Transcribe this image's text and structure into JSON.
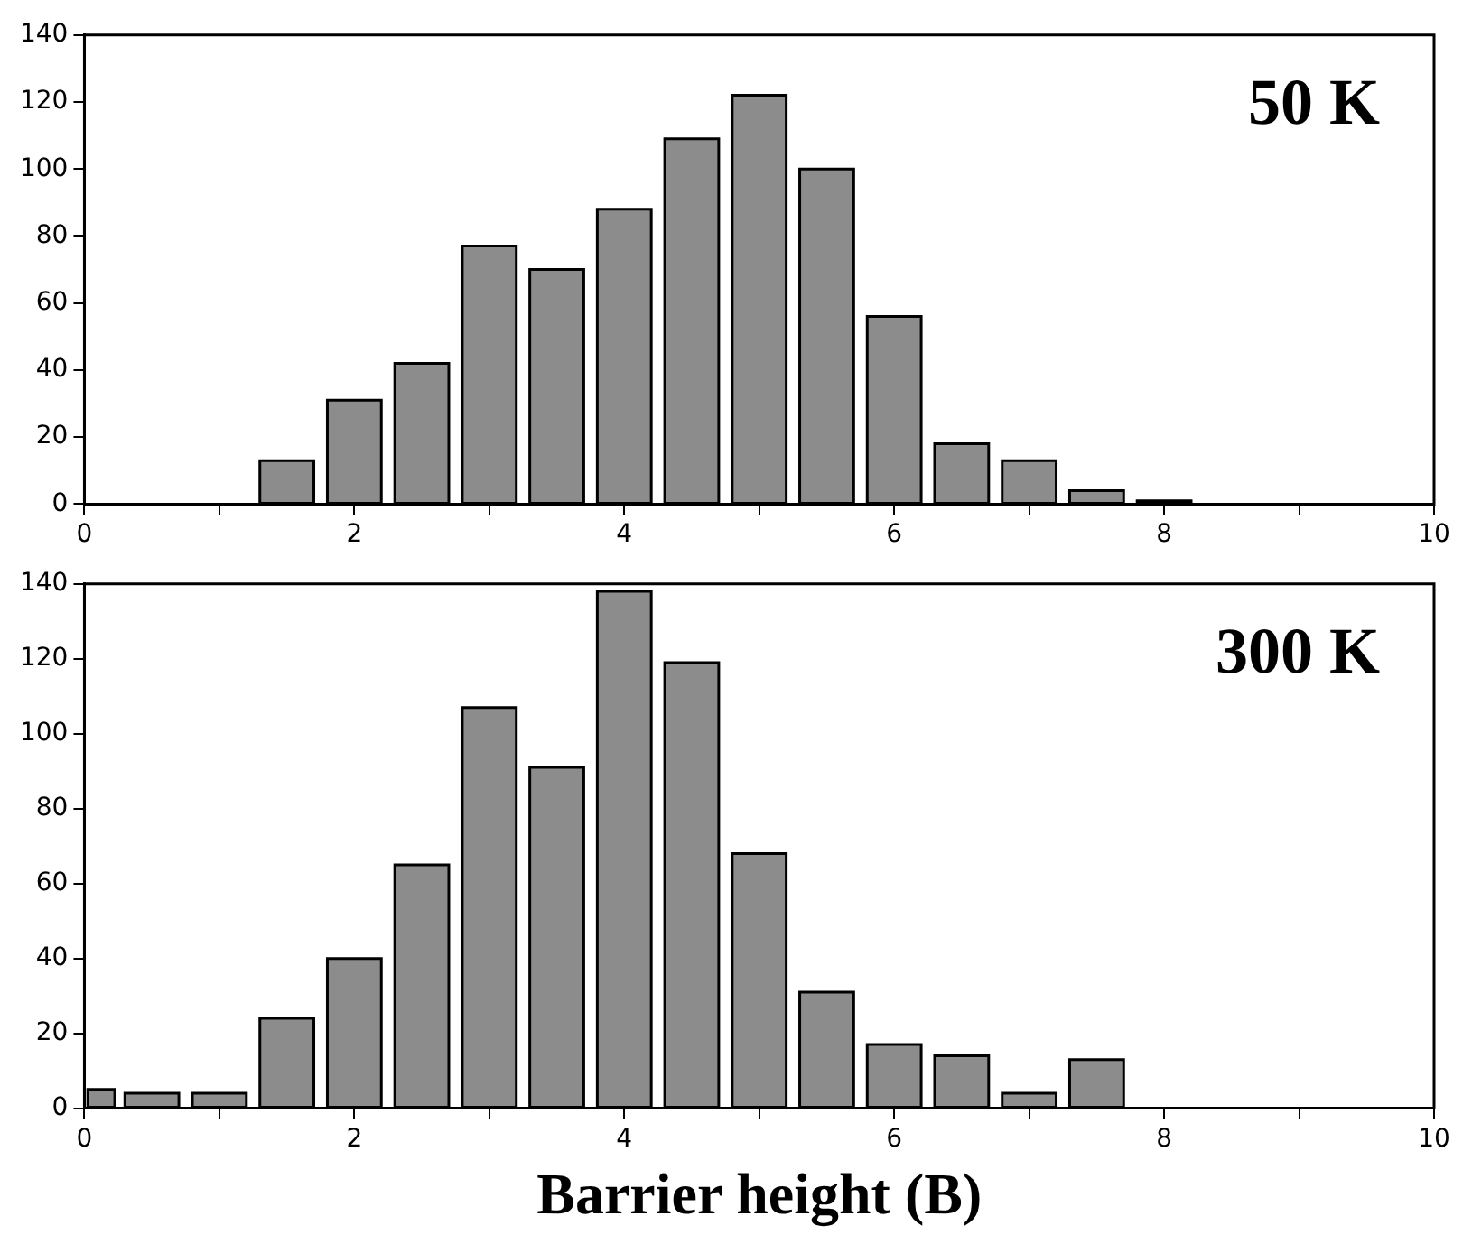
{
  "chart_data": [
    {
      "type": "histogram",
      "annotations": [
        "50 K"
      ],
      "bins": [
        1.25,
        1.75,
        2.25,
        2.75,
        3.25,
        3.75,
        4.25,
        4.75,
        5.25,
        5.75,
        6.25,
        6.75,
        7.25,
        7.75,
        8.25
      ],
      "values": [
        13,
        31,
        42,
        77,
        70,
        88,
        109,
        122,
        100,
        56,
        18,
        13,
        4,
        1
      ],
      "color": "#8c8c8c",
      "xlim": [
        0,
        10
      ],
      "xticks": [
        0,
        {
          "value": 1,
          "label": null
        },
        2,
        {
          "value": 3,
          "label": null
        },
        4,
        {
          "value": 5,
          "label": null
        },
        6,
        {
          "value": 7,
          "label": null
        },
        8,
        {
          "value": 9,
          "label": null
        },
        10
      ],
      "ylim": [
        0,
        140
      ],
      "yticks": [
        0,
        20,
        40,
        60,
        80,
        100,
        120,
        140
      ],
      "legend": false,
      "grid": false
    },
    {
      "type": "histogram",
      "annotations": [
        "300 K"
      ],
      "xlabel": "Barrier height (B)",
      "bins": [
        0,
        0.25,
        0.75,
        1.25,
        1.75,
        2.25,
        2.75,
        3.25,
        3.75,
        4.25,
        4.75,
        5.25,
        5.75,
        6.25,
        6.75,
        7.25,
        7.75
      ],
      "values": [
        5,
        4,
        4,
        24,
        40,
        65,
        107,
        91,
        138,
        119,
        68,
        31,
        17,
        14,
        4,
        13
      ],
      "color": "#8c8c8c",
      "xlim": [
        0,
        10
      ],
      "xticks": [
        0,
        {
          "value": 1,
          "label": null
        },
        2,
        {
          "value": 3,
          "label": null
        },
        4,
        {
          "value": 5,
          "label": null
        },
        6,
        {
          "value": 7,
          "label": null
        },
        8,
        {
          "value": 9,
          "label": null
        },
        10
      ],
      "ylim": [
        0,
        140
      ],
      "yticks": [
        0,
        20,
        40,
        60,
        80,
        100,
        120,
        140
      ],
      "legend": false,
      "grid": false
    }
  ]
}
